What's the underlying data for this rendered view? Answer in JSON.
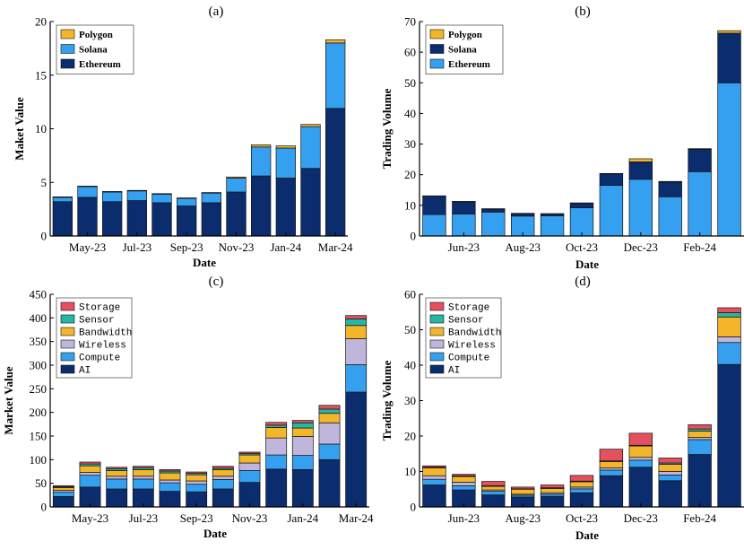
{
  "colors": {
    "ethereum": "#0b2d6e",
    "solana": "#35a0ef",
    "polygon": "#f3b52a",
    "ai": "#0b2d6e",
    "compute": "#35a0ef",
    "wireless": "#c0b6dc",
    "bandwidth": "#f3b52a",
    "sensor": "#25b7a3",
    "storage": "#e5505f"
  },
  "chart_data": [
    {
      "panel": "(a)",
      "type": "bar",
      "stacked": true,
      "title": "(a)",
      "xlabel": "Date",
      "ylabel": "Maket Value",
      "ylim": [
        0,
        20
      ],
      "yticks": [
        0,
        5,
        10,
        15,
        20
      ],
      "xtick_labels": [
        "May-23",
        "Jul-23",
        "Sep-23",
        "Nov-23",
        "Jan-24",
        "Mar-24"
      ],
      "xtick_positions": [
        1.5,
        3.5,
        5.5,
        7.5,
        9.5,
        11.5
      ],
      "n_bars": 12,
      "legend_position": "top-left",
      "legend_font": "serif",
      "legend_order": [
        "Polygon",
        "Solana",
        "Ethereum"
      ],
      "series": [
        {
          "name": "Ethereum",
          "color_key": "ethereum",
          "values": [
            3.2,
            3.6,
            3.2,
            3.3,
            3.1,
            2.8,
            3.1,
            4.1,
            5.6,
            5.4,
            6.3,
            11.9
          ]
        },
        {
          "name": "Solana",
          "color_key": "solana",
          "values": [
            0.4,
            1.0,
            0.9,
            0.9,
            0.8,
            0.7,
            0.9,
            1.3,
            2.7,
            2.8,
            3.9,
            6.1
          ]
        },
        {
          "name": "Polygon",
          "color_key": "polygon",
          "values": [
            0.05,
            0.05,
            0.05,
            0.05,
            0.05,
            0.05,
            0.05,
            0.1,
            0.2,
            0.2,
            0.2,
            0.3
          ]
        }
      ]
    },
    {
      "panel": "(b)",
      "type": "bar",
      "stacked": true,
      "title": "(b)",
      "xlabel": "Date",
      "ylabel": "Trading Volume",
      "ylim": [
        0,
        70
      ],
      "yticks": [
        0,
        10,
        20,
        30,
        40,
        50,
        60,
        70
      ],
      "xtick_labels": [
        "Jun-23",
        "Aug-23",
        "Oct-23",
        "Dec-23",
        "Feb-24"
      ],
      "xtick_positions": [
        1.5,
        3.5,
        5.5,
        7.5,
        9.5
      ],
      "n_bars": 11,
      "legend_position": "top-left",
      "legend_font": "serif",
      "legend_order": [
        "Polygon",
        "Solana",
        "Ethereum"
      ],
      "series": [
        {
          "name": "Ethereum",
          "color_key": "solana",
          "values": [
            7.0,
            7.2,
            7.8,
            6.5,
            6.6,
            9.2,
            16.5,
            18.5,
            12.8,
            21.0,
            50.0
          ]
        },
        {
          "name": "Solana",
          "color_key": "ethereum",
          "values": [
            6.0,
            4.0,
            1.0,
            0.8,
            0.6,
            1.5,
            3.8,
            5.7,
            4.8,
            7.3,
            16.2
          ]
        },
        {
          "name": "Polygon",
          "color_key": "polygon",
          "values": [
            0.1,
            0.1,
            0.1,
            0.1,
            0.1,
            0.1,
            0.1,
            1.0,
            0.2,
            0.2,
            0.8
          ]
        }
      ]
    },
    {
      "panel": "(c)",
      "type": "bar",
      "stacked": true,
      "title": "(c)",
      "xlabel": "Date",
      "ylabel": "Market Value",
      "ylim": [
        0,
        450
      ],
      "yticks": [
        0,
        50,
        100,
        150,
        200,
        250,
        300,
        350,
        400,
        450
      ],
      "xtick_labels": [
        "May-23",
        "Jul-23",
        "Sep-23",
        "Nov-23",
        "Jan-24",
        "Mar-24"
      ],
      "xtick_positions": [
        1.5,
        3.5,
        5.5,
        7.5,
        9.5,
        11.5
      ],
      "n_bars": 12,
      "legend_position": "top-left",
      "legend_font": "mono",
      "legend_order": [
        "Storage",
        "Sensor",
        "Bandwidth",
        "Wireless",
        "Compute",
        "AI"
      ],
      "series": [
        {
          "name": "AI",
          "color_key": "ai",
          "values": [
            22,
            42,
            38,
            38,
            33,
            32,
            38,
            52,
            80,
            79,
            100,
            243
          ]
        },
        {
          "name": "Compute",
          "color_key": "compute",
          "values": [
            9,
            25,
            21,
            21,
            18,
            16,
            20,
            25,
            30,
            30,
            33,
            58
          ]
        },
        {
          "name": "Wireless",
          "color_key": "wireless",
          "values": [
            4,
            6,
            6,
            6,
            6,
            7,
            7,
            16,
            36,
            40,
            45,
            55
          ]
        },
        {
          "name": "Bandwidth",
          "color_key": "bandwidth",
          "values": [
            6,
            14,
            12,
            14,
            15,
            13,
            14,
            17,
            22,
            18,
            20,
            28
          ]
        },
        {
          "name": "Sensor",
          "color_key": "sensor",
          "values": [
            2,
            4,
            4,
            4,
            4,
            3,
            3,
            3,
            5,
            11,
            9,
            14
          ]
        },
        {
          "name": "Storage",
          "color_key": "storage",
          "values": [
            2,
            4,
            3,
            3,
            3,
            3,
            4,
            3,
            6,
            5,
            8,
            7
          ]
        }
      ]
    },
    {
      "panel": "(d)",
      "type": "bar",
      "stacked": true,
      "title": "(d)",
      "xlabel": "Date",
      "ylabel": "Trading Volume",
      "ylim": [
        0,
        60
      ],
      "yticks": [
        0,
        10,
        20,
        30,
        40,
        50,
        60
      ],
      "xtick_labels": [
        "Jun-23",
        "Aug-23",
        "Oct-23",
        "Dec-23",
        "Feb-24"
      ],
      "xtick_positions": [
        1.5,
        3.5,
        5.5,
        7.5,
        9.5
      ],
      "n_bars": 11,
      "legend_position": "top-left",
      "legend_font": "mono",
      "legend_order": [
        "Storage",
        "Sensor",
        "Bandwidth",
        "Wireless",
        "Compute",
        "AI"
      ],
      "series": [
        {
          "name": "AI",
          "color_key": "ai",
          "values": [
            6.2,
            4.8,
            3.4,
            2.8,
            3.0,
            4.0,
            8.8,
            11.2,
            7.4,
            14.8,
            40.2
          ]
        },
        {
          "name": "Compute",
          "color_key": "compute",
          "values": [
            1.6,
            1.2,
            1.0,
            0.5,
            0.6,
            1.1,
            1.6,
            2.0,
            1.6,
            4.2,
            6.2
          ]
        },
        {
          "name": "Wireless",
          "color_key": "wireless",
          "values": [
            1.0,
            1.0,
            0.4,
            0.3,
            0.4,
            0.5,
            0.6,
            0.8,
            1.0,
            0.6,
            1.6
          ]
        },
        {
          "name": "Bandwidth",
          "color_key": "bandwidth",
          "values": [
            2.2,
            1.6,
            1.0,
            1.4,
            1.2,
            1.5,
            1.8,
            3.2,
            2.0,
            1.8,
            5.6
          ]
        },
        {
          "name": "Sensor",
          "color_key": "sensor",
          "values": [
            0.2,
            0.2,
            0.2,
            0.1,
            0.2,
            0.2,
            0.2,
            0.2,
            0.4,
            0.6,
            1.2
          ]
        },
        {
          "name": "Storage",
          "color_key": "storage",
          "values": [
            0.4,
            0.4,
            1.2,
            0.5,
            0.8,
            1.6,
            3.3,
            3.4,
            1.4,
            1.2,
            1.4
          ]
        }
      ]
    }
  ]
}
